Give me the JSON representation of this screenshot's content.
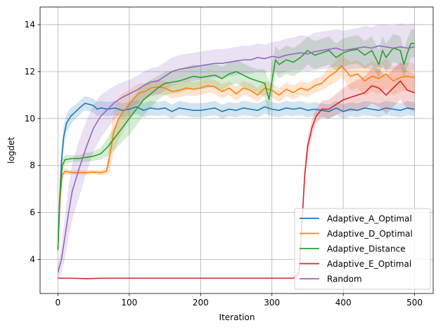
{
  "chart_data": {
    "type": "line",
    "xlabel": "Iteration",
    "ylabel": "logdet",
    "xlim": [
      -25,
      526
    ],
    "ylim": [
      2.55,
      14.75
    ],
    "xticks": [
      0,
      100,
      200,
      300,
      400,
      500
    ],
    "yticks": [
      4,
      6,
      8,
      10,
      12,
      14
    ],
    "grid": true,
    "legend_position": "lower-right",
    "series": [
      {
        "name": "Adaptive_A_Optimal",
        "color": "#1f77b4",
        "points": [
          [
            0,
            4.4
          ],
          [
            2,
            6.3
          ],
          [
            5,
            8.2
          ],
          [
            8,
            9.2
          ],
          [
            12,
            9.8
          ],
          [
            18,
            10.1
          ],
          [
            25,
            10.3
          ],
          [
            32,
            10.5
          ],
          [
            38,
            10.65
          ],
          [
            45,
            10.6
          ],
          [
            50,
            10.55
          ],
          [
            55,
            10.4
          ],
          [
            60,
            10.45
          ],
          [
            70,
            10.4
          ],
          [
            80,
            10.45
          ],
          [
            90,
            10.35
          ],
          [
            100,
            10.4
          ],
          [
            110,
            10.5
          ],
          [
            120,
            10.35
          ],
          [
            130,
            10.45
          ],
          [
            140,
            10.4
          ],
          [
            150,
            10.45
          ],
          [
            160,
            10.3
          ],
          [
            170,
            10.45
          ],
          [
            180,
            10.4
          ],
          [
            190,
            10.35
          ],
          [
            200,
            10.35
          ],
          [
            210,
            10.4
          ],
          [
            220,
            10.45
          ],
          [
            230,
            10.3
          ],
          [
            240,
            10.4
          ],
          [
            250,
            10.35
          ],
          [
            260,
            10.45
          ],
          [
            270,
            10.4
          ],
          [
            280,
            10.35
          ],
          [
            290,
            10.5
          ],
          [
            300,
            10.4
          ],
          [
            310,
            10.35
          ],
          [
            320,
            10.45
          ],
          [
            330,
            10.4
          ],
          [
            340,
            10.45
          ],
          [
            350,
            10.35
          ],
          [
            360,
            10.4
          ],
          [
            370,
            10.35
          ],
          [
            380,
            10.3
          ],
          [
            390,
            10.45
          ],
          [
            400,
            10.3
          ],
          [
            410,
            10.4
          ],
          [
            420,
            10.35
          ],
          [
            430,
            10.45
          ],
          [
            440,
            10.4
          ],
          [
            450,
            10.35
          ],
          [
            460,
            10.45
          ],
          [
            470,
            10.4
          ],
          [
            480,
            10.35
          ],
          [
            490,
            10.45
          ],
          [
            500,
            10.4
          ]
        ],
        "band": [
          0.25,
          0.5,
          0.6,
          0.5,
          0.4,
          0.35,
          0.3,
          0.3,
          0.3,
          0.3,
          0.3,
          0.3,
          0.3,
          0.3,
          0.3,
          0.3,
          0.3,
          0.3,
          0.3,
          0.3,
          0.3,
          0.3,
          0.3,
          0.3,
          0.3,
          0.3,
          0.3,
          0.3,
          0.3,
          0.3,
          0.3,
          0.3,
          0.3,
          0.3,
          0.3,
          0.3,
          0.3,
          0.3,
          0.3,
          0.3,
          0.3,
          0.3,
          0.3,
          0.3,
          0.3,
          0.3,
          0.3,
          0.3,
          0.3,
          0.3,
          0.3,
          0.3,
          0.3,
          0.3,
          0.3,
          0.3,
          0.3,
          0.3
        ]
      },
      {
        "name": "Adaptive_D_Optimal",
        "color": "#ff7f0e",
        "points": [
          [
            0,
            4.4
          ],
          [
            3,
            6.5
          ],
          [
            6,
            7.6
          ],
          [
            10,
            7.75
          ],
          [
            20,
            7.7
          ],
          [
            30,
            7.7
          ],
          [
            40,
            7.7
          ],
          [
            50,
            7.72
          ],
          [
            60,
            7.7
          ],
          [
            68,
            7.75
          ],
          [
            72,
            8.3
          ],
          [
            78,
            9.4
          ],
          [
            85,
            10.0
          ],
          [
            92,
            10.3
          ],
          [
            100,
            10.6
          ],
          [
            108,
            10.9
          ],
          [
            115,
            11.1
          ],
          [
            122,
            11.15
          ],
          [
            130,
            11.3
          ],
          [
            140,
            11.35
          ],
          [
            150,
            11.3
          ],
          [
            160,
            11.15
          ],
          [
            170,
            11.2
          ],
          [
            180,
            11.3
          ],
          [
            190,
            11.25
          ],
          [
            200,
            11.3
          ],
          [
            210,
            11.4
          ],
          [
            220,
            11.35
          ],
          [
            230,
            11.15
          ],
          [
            240,
            11.3
          ],
          [
            250,
            11.05
          ],
          [
            260,
            11.3
          ],
          [
            270,
            11.2
          ],
          [
            280,
            11.0
          ],
          [
            290,
            11.3
          ],
          [
            300,
            11.2
          ],
          [
            310,
            11.0
          ],
          [
            320,
            11.25
          ],
          [
            330,
            11.1
          ],
          [
            340,
            11.3
          ],
          [
            350,
            11.2
          ],
          [
            360,
            11.4
          ],
          [
            370,
            11.5
          ],
          [
            380,
            11.8
          ],
          [
            390,
            12.0
          ],
          [
            397,
            12.25
          ],
          [
            402,
            12.1
          ],
          [
            410,
            11.8
          ],
          [
            420,
            11.9
          ],
          [
            430,
            11.6
          ],
          [
            440,
            11.8
          ],
          [
            450,
            11.7
          ],
          [
            460,
            11.9
          ],
          [
            470,
            11.6
          ],
          [
            480,
            11.75
          ],
          [
            490,
            11.8
          ],
          [
            500,
            11.75
          ]
        ],
        "band": [
          0.2,
          0.4,
          0.2,
          0.15,
          0.1,
          0.1,
          0.1,
          0.1,
          0.1,
          0.15,
          0.6,
          0.9,
          0.9,
          0.8,
          0.6,
          0.5,
          0.4,
          0.35,
          0.3,
          0.3,
          0.3,
          0.3,
          0.3,
          0.3,
          0.3,
          0.3,
          0.3,
          0.3,
          0.3,
          0.3,
          0.3,
          0.3,
          0.3,
          0.3,
          0.3,
          0.3,
          0.3,
          0.3,
          0.3,
          0.3,
          0.3,
          0.3,
          0.3,
          0.4,
          0.45,
          0.5,
          0.5,
          0.6,
          0.6,
          0.65,
          0.65,
          0.65,
          0.65,
          0.6,
          0.6,
          0.6,
          0.6
        ]
      },
      {
        "name": "Adaptive_Distance",
        "color": "#2ca02c",
        "points": [
          [
            0,
            4.4
          ],
          [
            3,
            6.8
          ],
          [
            6,
            8.0
          ],
          [
            10,
            8.25
          ],
          [
            20,
            8.3
          ],
          [
            30,
            8.3
          ],
          [
            40,
            8.35
          ],
          [
            50,
            8.4
          ],
          [
            60,
            8.5
          ],
          [
            70,
            8.8
          ],
          [
            80,
            9.2
          ],
          [
            90,
            9.6
          ],
          [
            100,
            10.0
          ],
          [
            110,
            10.4
          ],
          [
            120,
            10.8
          ],
          [
            130,
            11.05
          ],
          [
            140,
            11.3
          ],
          [
            150,
            11.5
          ],
          [
            160,
            11.55
          ],
          [
            170,
            11.6
          ],
          [
            180,
            11.7
          ],
          [
            190,
            11.8
          ],
          [
            200,
            11.75
          ],
          [
            210,
            11.8
          ],
          [
            220,
            11.85
          ],
          [
            230,
            11.7
          ],
          [
            240,
            11.9
          ],
          [
            250,
            12.0
          ],
          [
            260,
            11.85
          ],
          [
            270,
            11.7
          ],
          [
            280,
            11.6
          ],
          [
            290,
            11.5
          ],
          [
            296,
            10.8
          ],
          [
            300,
            11.6
          ],
          [
            305,
            12.5
          ],
          [
            310,
            12.3
          ],
          [
            320,
            12.5
          ],
          [
            330,
            12.4
          ],
          [
            340,
            12.6
          ],
          [
            350,
            12.9
          ],
          [
            360,
            12.7
          ],
          [
            370,
            12.8
          ],
          [
            380,
            12.9
          ],
          [
            390,
            12.6
          ],
          [
            400,
            12.8
          ],
          [
            410,
            12.9
          ],
          [
            420,
            12.95
          ],
          [
            430,
            12.7
          ],
          [
            440,
            12.9
          ],
          [
            450,
            12.3
          ],
          [
            455,
            12.9
          ],
          [
            460,
            12.6
          ],
          [
            470,
            13.0
          ],
          [
            480,
            12.9
          ],
          [
            485,
            12.3
          ],
          [
            490,
            12.8
          ],
          [
            495,
            13.2
          ],
          [
            500,
            13.2
          ]
        ],
        "band": [
          0.2,
          0.5,
          0.3,
          0.2,
          0.15,
          0.15,
          0.2,
          0.2,
          0.25,
          0.4,
          0.5,
          0.6,
          0.7,
          0.7,
          0.65,
          0.6,
          0.5,
          0.5,
          0.5,
          0.5,
          0.5,
          0.5,
          0.5,
          0.5,
          0.5,
          0.5,
          0.5,
          0.5,
          0.5,
          0.5,
          0.5,
          0.6,
          0.8,
          0.7,
          0.6,
          0.6,
          0.6,
          0.6,
          0.6,
          0.6,
          0.6,
          0.6,
          0.6,
          0.6,
          0.6,
          0.6,
          0.6,
          0.6,
          0.6,
          0.6,
          0.6,
          0.6,
          0.6,
          0.6,
          0.6,
          0.6,
          0.6,
          0.6
        ]
      },
      {
        "name": "Adaptive_E_Optimal",
        "color": "#d62728",
        "points": [
          [
            0,
            3.2
          ],
          [
            20,
            3.2
          ],
          [
            40,
            3.18
          ],
          [
            60,
            3.2
          ],
          [
            100,
            3.2
          ],
          [
            150,
            3.2
          ],
          [
            200,
            3.2
          ],
          [
            250,
            3.2
          ],
          [
            300,
            3.2
          ],
          [
            330,
            3.2
          ],
          [
            338,
            3.4
          ],
          [
            342,
            5.5
          ],
          [
            346,
            7.6
          ],
          [
            350,
            8.8
          ],
          [
            356,
            9.6
          ],
          [
            362,
            10.1
          ],
          [
            370,
            10.4
          ],
          [
            380,
            10.4
          ],
          [
            390,
            10.6
          ],
          [
            400,
            10.8
          ],
          [
            410,
            10.9
          ],
          [
            420,
            11.0
          ],
          [
            430,
            11.1
          ],
          [
            440,
            11.4
          ],
          [
            450,
            11.3
          ],
          [
            460,
            11.0
          ],
          [
            470,
            11.3
          ],
          [
            480,
            11.6
          ],
          [
            490,
            11.2
          ],
          [
            500,
            11.1
          ]
        ],
        "band": [
          0.02,
          0.02,
          0.02,
          0.02,
          0.02,
          0.02,
          0.02,
          0.02,
          0.02,
          0.02,
          0.1,
          0.3,
          0.4,
          0.4,
          0.35,
          0.3,
          0.35,
          0.4,
          0.45,
          0.5,
          0.6,
          0.65,
          0.7,
          0.75,
          0.8,
          0.8,
          0.8,
          0.8,
          0.8,
          0.8
        ]
      },
      {
        "name": "Random",
        "color": "#9467bd",
        "points": [
          [
            0,
            3.45
          ],
          [
            5,
            4.0
          ],
          [
            10,
            5.0
          ],
          [
            15,
            6.0
          ],
          [
            20,
            6.9
          ],
          [
            30,
            7.9
          ],
          [
            40,
            8.8
          ],
          [
            50,
            9.6
          ],
          [
            60,
            10.1
          ],
          [
            70,
            10.4
          ],
          [
            80,
            10.7
          ],
          [
            90,
            10.9
          ],
          [
            100,
            11.05
          ],
          [
            110,
            11.2
          ],
          [
            120,
            11.4
          ],
          [
            130,
            11.55
          ],
          [
            140,
            11.6
          ],
          [
            150,
            11.8
          ],
          [
            160,
            12.0
          ],
          [
            170,
            12.1
          ],
          [
            180,
            12.15
          ],
          [
            190,
            12.2
          ],
          [
            200,
            12.25
          ],
          [
            210,
            12.3
          ],
          [
            220,
            12.35
          ],
          [
            230,
            12.35
          ],
          [
            240,
            12.4
          ],
          [
            250,
            12.45
          ],
          [
            260,
            12.5
          ],
          [
            270,
            12.5
          ],
          [
            280,
            12.6
          ],
          [
            290,
            12.55
          ],
          [
            300,
            12.65
          ],
          [
            310,
            12.6
          ],
          [
            320,
            12.7
          ],
          [
            330,
            12.75
          ],
          [
            340,
            12.8
          ],
          [
            350,
            12.75
          ],
          [
            360,
            12.85
          ],
          [
            370,
            12.9
          ],
          [
            380,
            12.95
          ],
          [
            390,
            13.0
          ],
          [
            400,
            12.9
          ],
          [
            410,
            12.95
          ],
          [
            420,
            13.0
          ],
          [
            430,
            13.05
          ],
          [
            440,
            13.0
          ],
          [
            450,
            13.1
          ],
          [
            460,
            13.05
          ],
          [
            470,
            13.0
          ],
          [
            480,
            13.05
          ],
          [
            490,
            13.0
          ],
          [
            500,
            13.05
          ]
        ],
        "band": [
          0.3,
          0.6,
          0.9,
          1.1,
          1.2,
          1.2,
          1.1,
          1.0,
          0.9,
          0.8,
          0.7,
          0.65,
          0.6,
          0.6,
          0.6,
          0.6,
          0.6,
          0.6,
          0.6,
          0.6,
          0.6,
          0.6,
          0.6,
          0.6,
          0.6,
          0.6,
          0.6,
          0.6,
          0.6,
          0.6,
          0.6,
          0.6,
          0.6,
          0.7,
          0.7,
          0.7,
          0.75,
          0.75,
          0.8,
          0.8,
          0.8,
          0.8,
          0.85,
          0.85,
          0.85,
          0.9,
          0.9,
          0.9,
          0.95,
          0.95,
          1.0,
          1.0,
          1.0
        ]
      }
    ]
  }
}
